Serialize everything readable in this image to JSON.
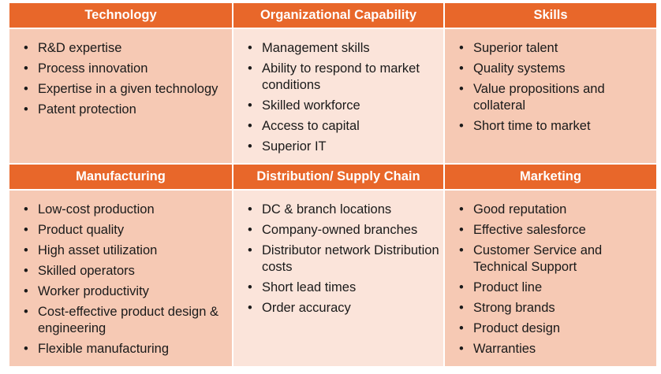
{
  "sections": [
    {
      "title": "Technology",
      "items": [
        "R&D expertise",
        "Process innovation",
        "Expertise in a given technology",
        "Patent protection"
      ]
    },
    {
      "title": "Organizational Capability",
      "items": [
        "Management skills",
        "Ability to respond to market conditions",
        "Skilled workforce",
        "Access to capital",
        "Superior IT"
      ]
    },
    {
      "title": "Skills",
      "items": [
        "Superior talent",
        "Quality systems",
        "Value propositions and collateral",
        "Short time to market"
      ]
    },
    {
      "title": "Manufacturing",
      "items": [
        "Low-cost production",
        "Product quality",
        "High asset utilization",
        "Skilled operators",
        "Worker productivity",
        "Cost-effective product design & engineering",
        "Flexible manufacturing"
      ]
    },
    {
      "title": "Distribution/ Supply Chain",
      "items": [
        "DC & branch locations",
        "Company-owned branches",
        "Distributor network Distribution costs",
        "Short lead times",
        "Order accuracy"
      ]
    },
    {
      "title": "Marketing",
      "items": [
        "Good reputation",
        "Effective salesforce",
        "Customer Service and Technical Support",
        "Product line",
        "Strong brands",
        "Product design",
        "Warranties"
      ]
    }
  ],
  "colors": {
    "header": "#e8672a",
    "cell_side": "#f6c9b4",
    "cell_middle": "#fbe4da"
  }
}
